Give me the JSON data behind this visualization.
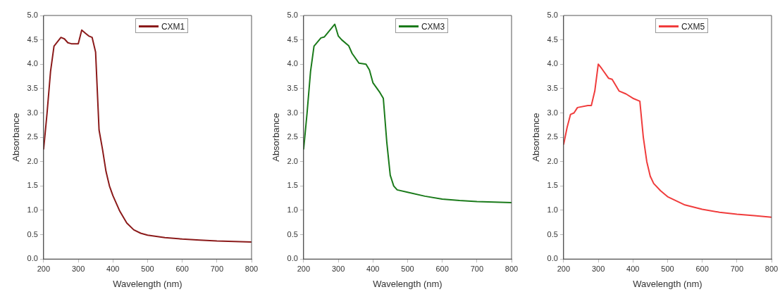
{
  "chart_data": [
    {
      "type": "line",
      "xlabel": "Wavelength (nm)",
      "ylabel": "Absorbance",
      "legend": "top",
      "grid": false,
      "x": [
        200,
        210,
        220,
        230,
        250,
        260,
        270,
        280,
        300,
        310,
        320,
        330,
        340,
        350,
        360,
        370,
        380,
        390,
        400,
        420,
        440,
        460,
        480,
        500,
        550,
        600,
        650,
        700,
        750,
        800
      ],
      "series": [
        {
          "name": "CXM1",
          "color": "#8b1a1a",
          "values": [
            2.25,
            3.0,
            3.85,
            4.37,
            4.55,
            4.52,
            4.44,
            4.42,
            4.42,
            4.7,
            4.64,
            4.58,
            4.55,
            4.25,
            2.65,
            2.25,
            1.8,
            1.5,
            1.3,
            0.98,
            0.74,
            0.6,
            0.53,
            0.49,
            0.44,
            0.41,
            0.39,
            0.37,
            0.36,
            0.35
          ]
        }
      ],
      "xlim": [
        200,
        800
      ],
      "xticks": [
        200,
        300,
        400,
        500,
        600,
        700,
        800
      ],
      "ylim": [
        0,
        5
      ],
      "yticks": [
        {
          "value": 0,
          "label": "0.0"
        },
        {
          "value": 0.5,
          "label": "0.5"
        },
        {
          "value": 1,
          "label": "1.0"
        },
        {
          "value": 1.5,
          "label": "1.5"
        },
        {
          "value": 2,
          "label": "2.0"
        },
        {
          "value": 2.5,
          "label": "2.5"
        },
        {
          "value": 3,
          "label": "3.0"
        },
        {
          "value": 3.5,
          "label": "3.5"
        },
        {
          "value": 4,
          "label": "4.0"
        },
        {
          "value": 4.5,
          "label": "4.5"
        },
        {
          "value": 5,
          "label": "5.0"
        }
      ]
    },
    {
      "type": "line",
      "xlabel": "Wavelength (nm)",
      "ylabel": "Absorbance",
      "legend": "top",
      "grid": false,
      "x": [
        200,
        210,
        220,
        230,
        250,
        260,
        290,
        300,
        310,
        330,
        340,
        360,
        380,
        390,
        400,
        420,
        430,
        440,
        450,
        460,
        470,
        500,
        550,
        600,
        650,
        700,
        750,
        800
      ],
      "series": [
        {
          "name": "CXM3",
          "color": "#1a7a1a",
          "values": [
            2.25,
            3.0,
            3.85,
            4.37,
            4.54,
            4.56,
            4.82,
            4.58,
            4.5,
            4.38,
            4.22,
            4.02,
            4.0,
            3.88,
            3.62,
            3.42,
            3.3,
            2.4,
            1.72,
            1.5,
            1.42,
            1.37,
            1.29,
            1.23,
            1.2,
            1.18,
            1.17,
            1.16
          ]
        }
      ],
      "xlim": [
        200,
        800
      ],
      "xticks": [
        200,
        300,
        400,
        500,
        600,
        700,
        800
      ],
      "ylim": [
        0,
        5
      ],
      "yticks": [
        {
          "value": 0,
          "label": "0.0"
        },
        {
          "value": 0.5,
          "label": "0.5"
        },
        {
          "value": 1,
          "label": "1.0"
        },
        {
          "value": 1.5,
          "label": "1.5"
        },
        {
          "value": 2,
          "label": "2.0"
        },
        {
          "value": 2.5,
          "label": "2.5"
        },
        {
          "value": 3,
          "label": "3.0"
        },
        {
          "value": 3.5,
          "label": "3.5"
        },
        {
          "value": 4,
          "label": "4.0"
        },
        {
          "value": 4.5,
          "label": "4.5"
        },
        {
          "value": 5,
          "label": "5.0"
        }
      ]
    },
    {
      "type": "line",
      "xlabel": "Wavelength (nm)",
      "ylabel": "Absorbance",
      "legend": "top",
      "grid": false,
      "x": [
        200,
        210,
        220,
        230,
        240,
        270,
        280,
        290,
        300,
        310,
        330,
        340,
        360,
        380,
        400,
        420,
        430,
        440,
        450,
        460,
        480,
        500,
        550,
        600,
        650,
        700,
        750,
        800
      ],
      "series": [
        {
          "name": "CXM5",
          "color": "#f03c3c",
          "values": [
            2.35,
            2.7,
            2.97,
            3.0,
            3.11,
            3.15,
            3.15,
            3.45,
            4.0,
            3.91,
            3.71,
            3.69,
            3.45,
            3.39,
            3.3,
            3.24,
            2.5,
            2.0,
            1.7,
            1.55,
            1.4,
            1.28,
            1.11,
            1.02,
            0.96,
            0.92,
            0.89,
            0.86
          ]
        }
      ],
      "xlim": [
        200,
        800
      ],
      "xticks": [
        200,
        300,
        400,
        500,
        600,
        700,
        800
      ],
      "ylim": [
        0,
        5
      ],
      "yticks": [
        {
          "value": 0,
          "label": "0.0"
        },
        {
          "value": 0.5,
          "label": "0.5"
        },
        {
          "value": 1,
          "label": "1.0"
        },
        {
          "value": 1.5,
          "label": "1.5"
        },
        {
          "value": 2,
          "label": "2.0"
        },
        {
          "value": 2.5,
          "label": "2.5"
        },
        {
          "value": 3,
          "label": "3.0"
        },
        {
          "value": 3.5,
          "label": "3.5"
        },
        {
          "value": 4,
          "label": "4.0"
        },
        {
          "value": 4.5,
          "label": "4.5"
        },
        {
          "value": 5,
          "label": "5.0"
        }
      ]
    }
  ]
}
